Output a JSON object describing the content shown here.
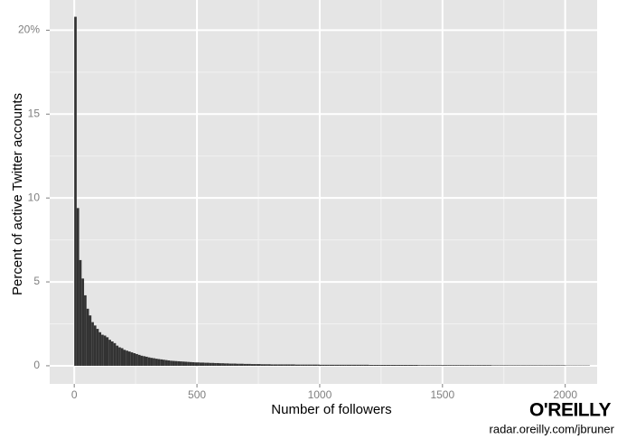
{
  "chart_data": {
    "type": "histogram",
    "x_label": "Number of followers",
    "y_label": "Percent of active Twitter accounts",
    "logo": "O'REILLY",
    "source": "radar.oreilly.com/jbruner",
    "color": "#333333",
    "background": "#e5e5e5",
    "grid": true,
    "xlim": [
      -100,
      2130
    ],
    "ylim": [
      -1.08,
      21.8
    ],
    "xticks": [
      0,
      500,
      1000,
      1500,
      2000
    ],
    "yticks": [
      0,
      5,
      10,
      15,
      {
        "value": 20,
        "label": "20%"
      }
    ],
    "bins": [
      0,
      10,
      20,
      30,
      40,
      50,
      60,
      70,
      80,
      90,
      100,
      110,
      120,
      130,
      140,
      150,
      160,
      170,
      180,
      190,
      200,
      210,
      220,
      230,
      240,
      250,
      260,
      270,
      280,
      290,
      300,
      310,
      320,
      330,
      340,
      350,
      360,
      370,
      380,
      390,
      400,
      410,
      420,
      430,
      440,
      450,
      460,
      470,
      480,
      490,
      500,
      510,
      520,
      530,
      540,
      550,
      560,
      570,
      580,
      590,
      600,
      610,
      620,
      630,
      640,
      650,
      660,
      670,
      680,
      690,
      700,
      710,
      720,
      730,
      740,
      750,
      760,
      770,
      780,
      790,
      800,
      810,
      820,
      830,
      840,
      850,
      860,
      870,
      880,
      890,
      900,
      910,
      920,
      930,
      940,
      950,
      960,
      970,
      980,
      990,
      1000,
      1010,
      1020,
      1030,
      1040,
      1050,
      1060,
      1070,
      1080,
      1090,
      1100,
      1110,
      1120,
      1130,
      1140,
      1150,
      1160,
      1170,
      1180,
      1190,
      1200,
      1210,
      1220,
      1230,
      1240,
      1250,
      1260,
      1270,
      1280,
      1290,
      1300,
      1310,
      1320,
      1330,
      1340,
      1350,
      1360,
      1370,
      1380,
      1390,
      1400,
      1410,
      1420,
      1430,
      1440,
      1450,
      1460,
      1470,
      1480,
      1490,
      1500,
      1510,
      1520,
      1530,
      1540,
      1550,
      1560,
      1570,
      1580,
      1590,
      1600,
      1610,
      1620,
      1630,
      1640,
      1650,
      1660,
      1670,
      1680,
      1690,
      1700,
      1710,
      1720,
      1730,
      1740,
      1750,
      1760,
      1770,
      1780,
      1790,
      1800,
      1810,
      1820,
      1830,
      1840,
      1850,
      1860,
      1870,
      1880,
      1890,
      1900,
      1910,
      1920,
      1930,
      1940,
      1950,
      1960,
      1970,
      1980,
      1990,
      2000,
      2010,
      2020,
      2030,
      2040,
      2050,
      2060,
      2070,
      2080,
      2090,
      2100
    ],
    "values": [
      20.8,
      9.4,
      6.3,
      5.2,
      4.2,
      3.4,
      3.0,
      2.6,
      2.4,
      2.2,
      2.0,
      1.85,
      1.8,
      1.7,
      1.55,
      1.45,
      1.35,
      1.2,
      1.1,
      1.05,
      0.95,
      0.9,
      0.85,
      0.8,
      0.75,
      0.7,
      0.65,
      0.6,
      0.57,
      0.54,
      0.5,
      0.47,
      0.45,
      0.42,
      0.4,
      0.38,
      0.36,
      0.34,
      0.32,
      0.3,
      0.29,
      0.28,
      0.27,
      0.26,
      0.25,
      0.24,
      0.23,
      0.22,
      0.21,
      0.2,
      0.2,
      0.19,
      0.19,
      0.18,
      0.18,
      0.17,
      0.17,
      0.16,
      0.16,
      0.15,
      0.15,
      0.14,
      0.14,
      0.13,
      0.13,
      0.13,
      0.12,
      0.12,
      0.12,
      0.11,
      0.11,
      0.11,
      0.1,
      0.1,
      0.1,
      0.1,
      0.09,
      0.09,
      0.09,
      0.09,
      0.08,
      0.08,
      0.08,
      0.08,
      0.08,
      0.08,
      0.08,
      0.08,
      0.08,
      0.08,
      0.07,
      0.07,
      0.07,
      0.07,
      0.07,
      0.07,
      0.07,
      0.07,
      0.07,
      0.07,
      0.06,
      0.06,
      0.06,
      0.06,
      0.06,
      0.06,
      0.06,
      0.06,
      0.06,
      0.06,
      0.06,
      0.06,
      0.06,
      0.06,
      0.06,
      0.06,
      0.06,
      0.06,
      0.06,
      0.06,
      0.05,
      0.05,
      0.05,
      0.05,
      0.05,
      0.05,
      0.05,
      0.05,
      0.05,
      0.05,
      0.05,
      0.05,
      0.05,
      0.05,
      0.05,
      0.05,
      0.05,
      0.05,
      0.05,
      0.05,
      0.04,
      0.04,
      0.04,
      0.04,
      0.04,
      0.04,
      0.04,
      0.04,
      0.04,
      0.04,
      0.04,
      0.04,
      0.04,
      0.04,
      0.04,
      0.04,
      0.04,
      0.04,
      0.04,
      0.04,
      0.04,
      0.04,
      0.04,
      0.04,
      0.04,
      0.04,
      0.04,
      0.04,
      0.04,
      0.04,
      0.03,
      0.03,
      0.03,
      0.03,
      0.03,
      0.03,
      0.03,
      0.03,
      0.03,
      0.03,
      0.03,
      0.03,
      0.03,
      0.03,
      0.03,
      0.03,
      0.03,
      0.03,
      0.03,
      0.03,
      0.03,
      0.03,
      0.03,
      0.03,
      0.03,
      0.03,
      0.03,
      0.03,
      0.03,
      0.03,
      0.02,
      0.02,
      0.02,
      0.02,
      0.02,
      0.02,
      0.02,
      0.02,
      0.02,
      0.02
    ]
  }
}
